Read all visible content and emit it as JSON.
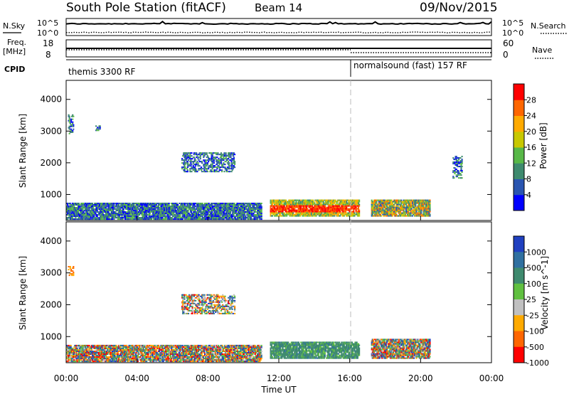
{
  "header": {
    "station": "South Pole Station (fitACF)",
    "beam": "Beam 14",
    "date": "09/Nov/2015"
  },
  "strips": {
    "nsky_label": "N.Sky",
    "nsearch_label": "N.Search",
    "freq_label": "Freq.",
    "freq_unit": "[MHz]",
    "nave_label": "Nave",
    "cpid_label": "CPID",
    "nsky_ticks": [
      "10^5",
      "10^0"
    ],
    "nsearch_ticks": [
      "10^5",
      "10^0"
    ],
    "freq_ticks": [
      "18",
      "8"
    ],
    "nave_ticks": [
      "60",
      "0"
    ],
    "cpid_segments": [
      "themis 3300 RF",
      "normalsound (fast) 157 RF"
    ]
  },
  "time_axis": {
    "label": "Time UT",
    "ticks": [
      "00:00",
      "04:00",
      "08:00",
      "12:00",
      "16:00",
      "20:00",
      "00:00"
    ]
  },
  "chart_data": [
    {
      "type": "heatmap",
      "panel": "power",
      "ylabel": "Slant Range [km]",
      "xlabel": "Time UT",
      "y_ticks": [
        "1000",
        "2000",
        "3000",
        "4000"
      ],
      "ylim": [
        180,
        4600
      ],
      "xlim": [
        0,
        24
      ],
      "colorbar": {
        "label": "Power [dB]",
        "ticks": [
          "4",
          "8",
          "12",
          "16",
          "20",
          "24",
          "28"
        ],
        "range": [
          0,
          32
        ],
        "colors": [
          "#0000ff",
          "#2a55b0",
          "#3e8a6e",
          "#58b848",
          "#c8c800",
          "#ffaa00",
          "#ff6600",
          "#ff0000"
        ]
      },
      "regions": [
        {
          "t": [
            11.5,
            16.5
          ],
          "r": [
            300,
            800
          ],
          "level": "high"
        },
        {
          "t": [
            17.2,
            20.5
          ],
          "r": [
            300,
            800
          ],
          "level": "medium"
        },
        {
          "t": [
            0,
            11
          ],
          "r": [
            200,
            700
          ],
          "level": "low"
        },
        {
          "t": [
            0.1,
            0.4
          ],
          "r": [
            2900,
            3500
          ],
          "level": "low"
        },
        {
          "t": [
            1.6,
            1.9
          ],
          "r": [
            3000,
            3150
          ],
          "level": "low"
        },
        {
          "t": [
            6.5,
            9.5
          ],
          "r": [
            1700,
            2300
          ],
          "level": "low"
        },
        {
          "t": [
            21.8,
            22.3
          ],
          "r": [
            1500,
            2200
          ],
          "level": "low"
        }
      ]
    },
    {
      "type": "heatmap",
      "panel": "velocity",
      "ylabel": "Slant Range [km]",
      "xlabel": "Time UT",
      "y_ticks": [
        "1000",
        "2000",
        "3000",
        "4000"
      ],
      "ylim": [
        180,
        4600
      ],
      "xlim": [
        0,
        24
      ],
      "colorbar": {
        "label": "Velocity [m s^-1]",
        "ticks": [
          "1000",
          "500",
          "100",
          "25",
          "-25",
          "-100",
          "-500",
          "-1000"
        ],
        "range": [
          -1000,
          1000
        ],
        "colors": [
          "#2040c0",
          "#3070a0",
          "#3e8a6e",
          "#60c040",
          "#c0c0c0",
          "#ffaa00",
          "#ff6600",
          "#ff0000"
        ]
      },
      "regions": [
        {
          "t": [
            11.5,
            16.5
          ],
          "r": [
            300,
            800
          ],
          "level": "toward-slow"
        },
        {
          "t": [
            17.2,
            20.5
          ],
          "r": [
            300,
            900
          ],
          "level": "mixed"
        },
        {
          "t": [
            0,
            11
          ],
          "r": [
            200,
            700
          ],
          "level": "mixed"
        },
        {
          "t": [
            0.1,
            0.4
          ],
          "r": [
            2900,
            3200
          ],
          "level": "away"
        },
        {
          "t": [
            6.5,
            9.5
          ],
          "r": [
            1700,
            2300
          ],
          "level": "mixed"
        }
      ]
    }
  ]
}
